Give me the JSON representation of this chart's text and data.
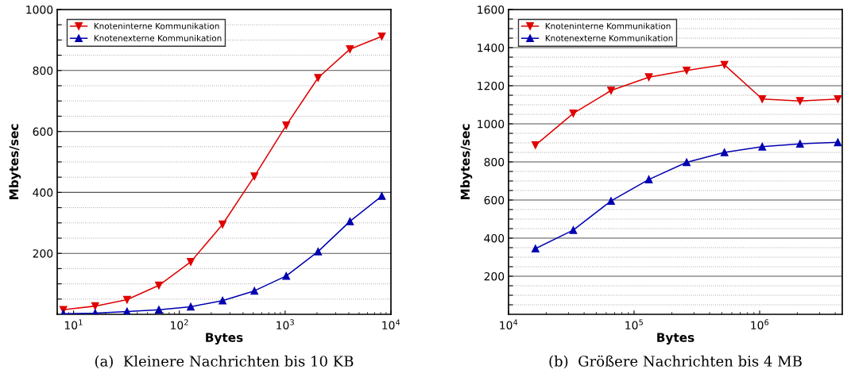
{
  "chart_data": [
    {
      "type": "line",
      "xlabel": "Bytes",
      "ylabel": "Mbytes/sec",
      "log": "x",
      "grid": "y",
      "legend": "top left",
      "line_style": "solid",
      "xlim": [
        7,
        10000
      ],
      "xticks": [
        {
          "value": 10,
          "label": "10$^{1}$"
        },
        {
          "value": 100,
          "label": "10$^{2}$"
        },
        {
          "value": 1000,
          "label": "10$^{3}$"
        },
        {
          "value": 10000,
          "label": "10$^{4}$"
        }
      ],
      "ylim": [
        0,
        1000
      ],
      "yticks": [
        {
          "value": 50,
          "label": null
        },
        {
          "value": 100,
          "label": null
        },
        {
          "value": 150,
          "label": null
        },
        200,
        {
          "value": 250,
          "label": null
        },
        {
          "value": 300,
          "label": null
        },
        {
          "value": 350,
          "label": null
        },
        400,
        {
          "value": 450,
          "label": null
        },
        {
          "value": 500,
          "label": null
        },
        {
          "value": 550,
          "label": null
        },
        600,
        {
          "value": 650,
          "label": null
        },
        {
          "value": 700,
          "label": null
        },
        {
          "value": 750,
          "label": null
        },
        800,
        {
          "value": 850,
          "label": null
        },
        {
          "value": 900,
          "label": null
        },
        {
          "value": 950,
          "label": null
        },
        1000
      ],
      "x": [
        8,
        16,
        32,
        64,
        128,
        256,
        512,
        1024,
        2048,
        4096,
        8192
      ],
      "series": [
        {
          "name": "Knoteninterne Kommunikation",
          "color": "#e00000",
          "marker": "triangle_down",
          "values": [
            15,
            27,
            48,
            95,
            172,
            295,
            453,
            620,
            776,
            870,
            912
          ]
        },
        {
          "name": "Knotenexterne Kommunikation",
          "color": "#0000b0",
          "marker": "triangle",
          "values": [
            2,
            4,
            9,
            15,
            25,
            45,
            77,
            126,
            206,
            305,
            388
          ]
        }
      ],
      "annotations": [
        "(a)  Kleinere Nachrichten bis 10 KB"
      ]
    },
    {
      "type": "line",
      "xlabel": "Bytes",
      "ylabel": "Mbytes/sec",
      "log": "x",
      "grid": "y",
      "legend": "top left",
      "line_style": "solid",
      "xlim": [
        10000,
        4550000
      ],
      "xticks": [
        {
          "value": 10000,
          "label": "10$^{4}$"
        },
        {
          "value": 100000,
          "label": "10$^{5}$"
        },
        {
          "value": 1000000,
          "label": "10$^{6}$"
        }
      ],
      "ylim": [
        0,
        1600
      ],
      "yticks": [
        {
          "value": 50,
          "label": null
        },
        {
          "value": 100,
          "label": null
        },
        {
          "value": 150,
          "label": null
        },
        200,
        {
          "value": 250,
          "label": null
        },
        {
          "value": 300,
          "label": null
        },
        {
          "value": 350,
          "label": null
        },
        400,
        {
          "value": 450,
          "label": null
        },
        {
          "value": 500,
          "label": null
        },
        {
          "value": 550,
          "label": null
        },
        600,
        {
          "value": 650,
          "label": null
        },
        {
          "value": 700,
          "label": null
        },
        {
          "value": 750,
          "label": null
        },
        800,
        {
          "value": 850,
          "label": null
        },
        {
          "value": 900,
          "label": null
        },
        {
          "value": 950,
          "label": null
        },
        1000,
        {
          "value": 1050,
          "label": null
        },
        {
          "value": 1100,
          "label": null
        },
        {
          "value": 1150,
          "label": null
        },
        1200,
        {
          "value": 1250,
          "label": null
        },
        {
          "value": 1300,
          "label": null
        },
        {
          "value": 1350,
          "label": null
        },
        1400,
        {
          "value": 1450,
          "label": null
        },
        {
          "value": 1500,
          "label": null
        },
        {
          "value": 1550,
          "label": null
        },
        1600
      ],
      "x": [
        16384,
        32768,
        65536,
        131072,
        262144,
        524288,
        1048576,
        2097152,
        4194304
      ],
      "series": [
        {
          "name": "Knoteninterne Kommunikation",
          "color": "#e00000",
          "marker": "triangle_down",
          "values": [
            888,
            1055,
            1175,
            1245,
            1280,
            1310,
            1130,
            1120,
            1130
          ]
        },
        {
          "name": "Knotenexterne Kommunikation",
          "color": "#0000b0",
          "marker": "triangle",
          "values": [
            345,
            442,
            595,
            708,
            798,
            850,
            880,
            895,
            903
          ]
        }
      ],
      "annotations": [
        "(b)  Größere Nachrichten bis 4 MB"
      ]
    }
  ]
}
